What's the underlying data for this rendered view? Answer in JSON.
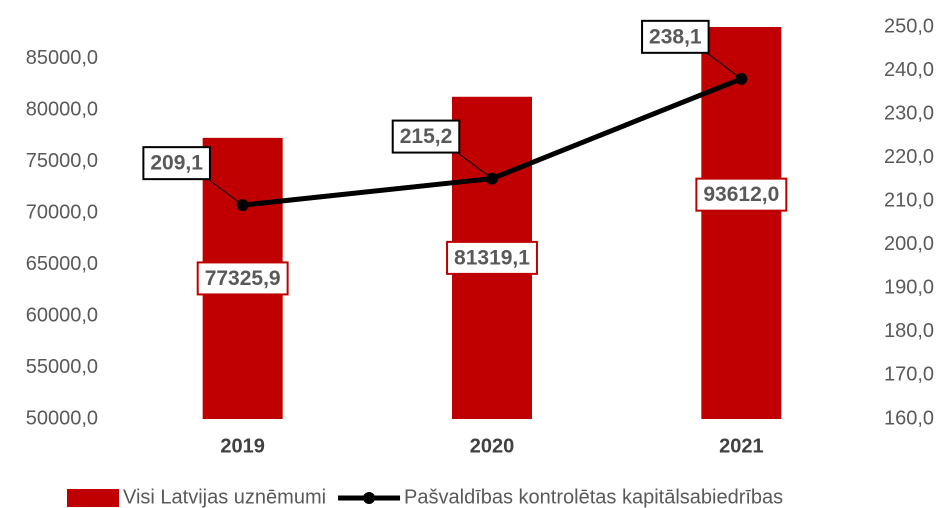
{
  "chart_data": {
    "type": "bar_line",
    "categories": [
      "2019",
      "2020",
      "2021"
    ],
    "series": [
      {
        "name": "Visi Latvijas uznēmumi",
        "type": "bar",
        "color": "#c00000",
        "values": [
          77325.9,
          81319.1,
          93612.0
        ],
        "value_labels": [
          "77325,9",
          "81319,1",
          "93612,0"
        ]
      },
      {
        "name": "Pašvaldības kontrolētas kapitālsabiedrības",
        "type": "line",
        "axis": "y2",
        "color": "#000000",
        "values": [
          209.1,
          215.2,
          238.1
        ],
        "value_labels": [
          "209,1",
          "215,2",
          "238,1"
        ]
      }
    ],
    "ylim": [
      50000,
      88100
    ],
    "yticks": [
      {
        "value": 50000,
        "label": "50000,0"
      },
      {
        "value": 55000,
        "label": "55000,0"
      },
      {
        "value": 60000,
        "label": "60000,0"
      },
      {
        "value": 65000,
        "label": "65000,0"
      },
      {
        "value": 70000,
        "label": "70000,0"
      },
      {
        "value": 75000,
        "label": "75000,0"
      },
      {
        "value": 80000,
        "label": "80000,0"
      },
      {
        "value": 85000,
        "label": "85000,0"
      }
    ],
    "y2lim": [
      160,
      250
    ],
    "y2ticks": [
      {
        "value": 160,
        "label": "160,0"
      },
      {
        "value": 170,
        "label": "170,0"
      },
      {
        "value": 180,
        "label": "180,0"
      },
      {
        "value": 190,
        "label": "190,0"
      },
      {
        "value": 200,
        "label": "200,0"
      },
      {
        "value": 210,
        "label": "210,0"
      },
      {
        "value": 220,
        "label": "220,0"
      },
      {
        "value": 230,
        "label": "230,0"
      },
      {
        "value": 240,
        "label": "240,0"
      },
      {
        "value": 250,
        "label": "250,0"
      }
    ],
    "legend": "bottom"
  }
}
